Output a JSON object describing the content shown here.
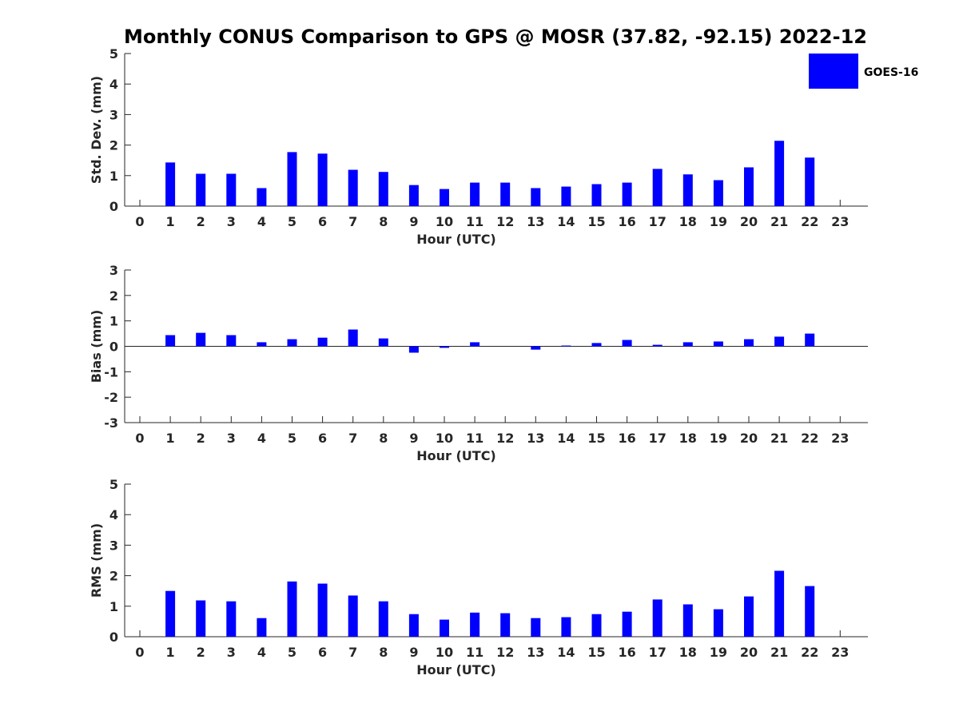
{
  "chart_data": {
    "title": "Monthly CONUS Comparison to GPS @ MOSR (37.82, -92.15) 2022-12",
    "legend": {
      "label": "GOES-16",
      "color": "#0000ff",
      "placement": "top-right"
    },
    "bar_color": "#0000ff",
    "panels": [
      {
        "type": "bar",
        "name": "std-dev",
        "xlabel": "Hour (UTC)",
        "ylabel": "Std. Dev. (mm)",
        "ylim": [
          0,
          5
        ],
        "yticks": [
          "0",
          "1",
          "2",
          "3",
          "4",
          "5"
        ],
        "categories": [
          "0",
          "1",
          "2",
          "3",
          "4",
          "5",
          "6",
          "7",
          "8",
          "9",
          "10",
          "11",
          "12",
          "13",
          "14",
          "15",
          "16",
          "17",
          "18",
          "19",
          "20",
          "21",
          "22",
          "23"
        ],
        "values": [
          null,
          1.43,
          1.06,
          1.06,
          0.59,
          1.77,
          1.72,
          1.19,
          1.12,
          0.69,
          0.56,
          0.77,
          0.77,
          0.59,
          0.64,
          0.72,
          0.77,
          1.22,
          1.04,
          0.85,
          1.27,
          2.14,
          1.59,
          null
        ]
      },
      {
        "type": "bar",
        "name": "bias",
        "xlabel": "Hour (UTC)",
        "ylabel": "Bias (mm)",
        "ylim": [
          -3,
          3
        ],
        "yticks": [
          "-3",
          "-2",
          "-1",
          "0",
          "1",
          "2",
          "3"
        ],
        "categories": [
          "0",
          "1",
          "2",
          "3",
          "4",
          "5",
          "6",
          "7",
          "8",
          "9",
          "10",
          "11",
          "12",
          "13",
          "14",
          "15",
          "16",
          "17",
          "18",
          "19",
          "20",
          "21",
          "22",
          "23"
        ],
        "values": [
          null,
          0.44,
          0.53,
          0.44,
          0.16,
          0.28,
          0.34,
          0.66,
          0.31,
          -0.25,
          -0.06,
          0.16,
          0.0,
          -0.13,
          0.03,
          0.13,
          0.25,
          0.06,
          0.16,
          0.19,
          0.28,
          0.38,
          0.5,
          null
        ]
      },
      {
        "type": "bar",
        "name": "rms",
        "xlabel": "Hour (UTC)",
        "ylabel": "RMS (mm)",
        "ylim": [
          0,
          5
        ],
        "yticks": [
          "0",
          "1",
          "2",
          "3",
          "4",
          "5"
        ],
        "categories": [
          "0",
          "1",
          "2",
          "3",
          "4",
          "5",
          "6",
          "7",
          "8",
          "9",
          "10",
          "11",
          "12",
          "13",
          "14",
          "15",
          "16",
          "17",
          "18",
          "19",
          "20",
          "21",
          "22",
          "23"
        ],
        "values": [
          null,
          1.5,
          1.19,
          1.16,
          0.61,
          1.81,
          1.74,
          1.35,
          1.16,
          0.74,
          0.56,
          0.79,
          0.77,
          0.61,
          0.64,
          0.74,
          0.82,
          1.22,
          1.06,
          0.9,
          1.32,
          2.16,
          1.66,
          null
        ]
      }
    ]
  }
}
